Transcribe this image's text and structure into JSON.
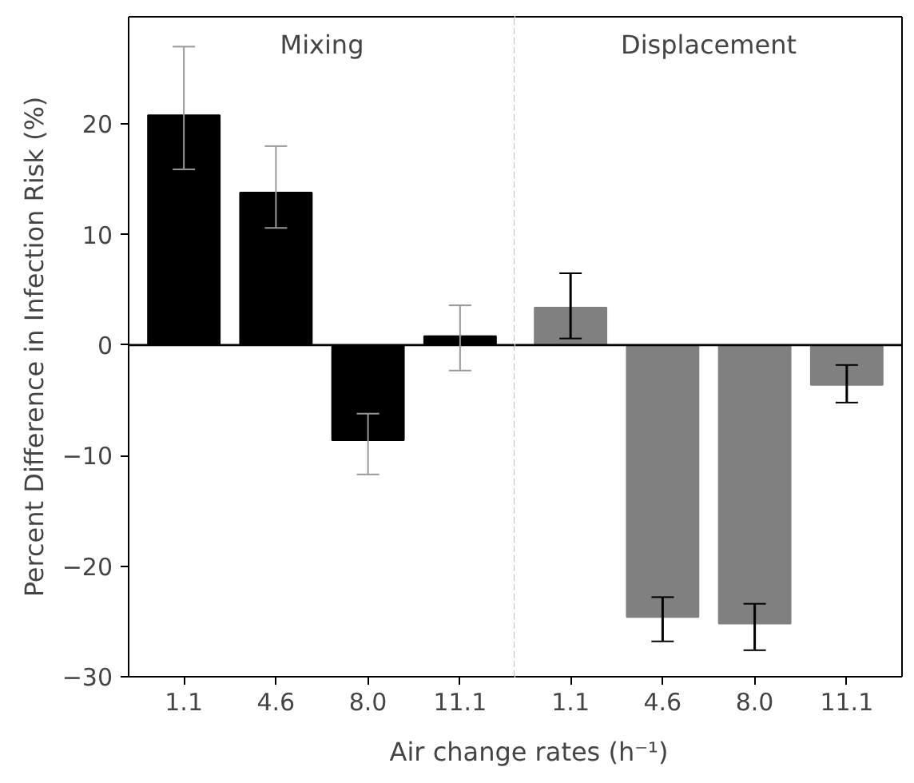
{
  "chart_data": [
    {
      "type": "bar",
      "xlabel": "Air change rates (h⁻¹)",
      "ylabel": "Percent Difference in Infection Risk (%)",
      "categories": [
        "1.1",
        "4.6",
        "8.0",
        "11.1"
      ],
      "values": [
        20.8,
        13.8,
        -8.6,
        0.8
      ],
      "color": "#000000",
      "errors": [
        [
          15.9,
          27.0
        ],
        [
          10.6,
          18.0
        ],
        [
          -11.7,
          -6.2
        ],
        [
          -2.3,
          3.6
        ]
      ],
      "ylim": [
        -30,
        29.7
      ],
      "yticks": [
        -30,
        -20,
        -10,
        0,
        10,
        20
      ],
      "ref_lines": [
        {
          "axis": "y",
          "value": 0,
          "color": "#000000",
          "line_style": "solid"
        }
      ],
      "annotations": [
        "Mixing"
      ],
      "grid": false
    },
    {
      "type": "bar",
      "categories": [
        "1.1",
        "4.6",
        "8.0",
        "11.1"
      ],
      "values": [
        3.4,
        -24.6,
        -25.2,
        -3.6
      ],
      "color": "#808080",
      "errors": [
        [
          0.6,
          6.5
        ],
        [
          -26.8,
          -22.8
        ],
        [
          -27.6,
          -23.4
        ],
        [
          -5.2,
          -1.8
        ]
      ],
      "ylim": [
        -30,
        29.7
      ],
      "yticks": [
        -30,
        -20,
        -10,
        0,
        10,
        20
      ],
      "tick_labels": "x",
      "ref_lines": [
        {
          "axis": "y",
          "value": 0,
          "color": "#000000",
          "line_style": "solid"
        }
      ],
      "annotations": [
        "Displacement"
      ],
      "grid": false
    }
  ]
}
